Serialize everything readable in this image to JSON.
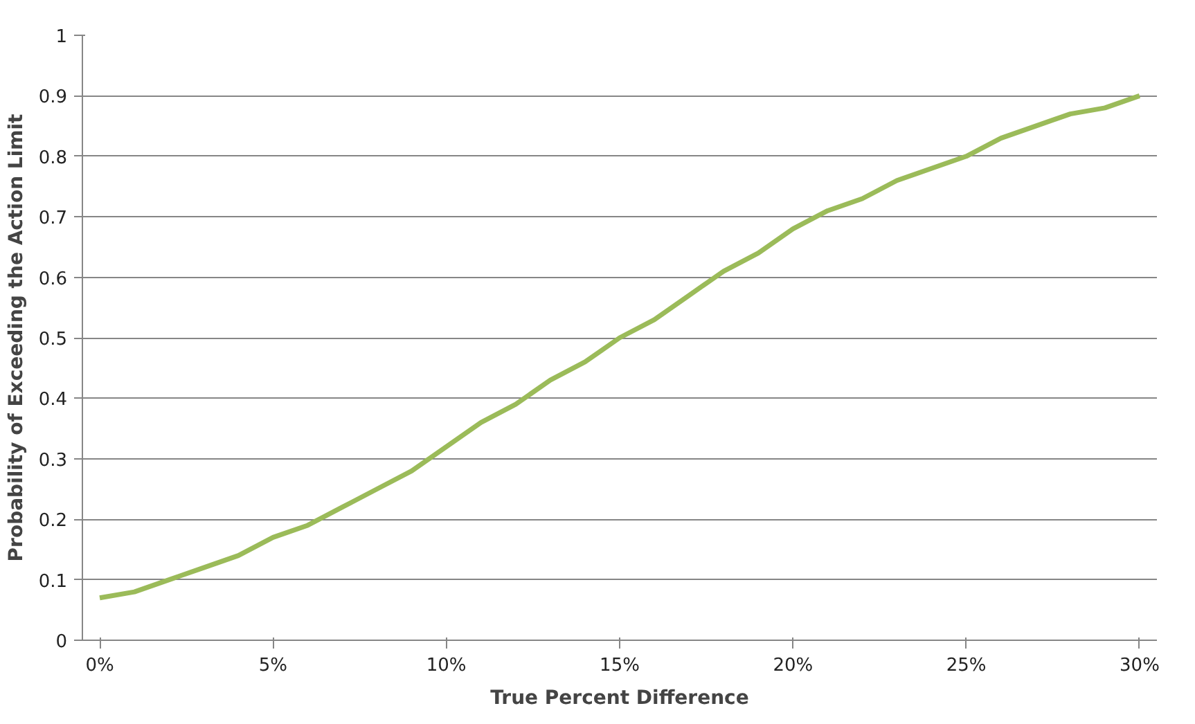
{
  "chart_data": {
    "type": "line",
    "xlabel": "True Percent Difference",
    "ylabel": "Probability of Exceeding the Action Limit",
    "x": [
      0,
      1,
      2,
      3,
      4,
      5,
      6,
      7,
      8,
      9,
      10,
      11,
      12,
      13,
      14,
      15,
      16,
      17,
      18,
      19,
      20,
      21,
      22,
      23,
      24,
      25,
      26,
      27,
      28,
      29,
      30
    ],
    "series": [
      {
        "color": "#9bbb59",
        "values": [
          0.07,
          0.08,
          0.1,
          0.12,
          0.14,
          0.17,
          0.19,
          0.22,
          0.25,
          0.28,
          0.32,
          0.36,
          0.39,
          0.43,
          0.46,
          0.5,
          0.53,
          0.57,
          0.61,
          0.64,
          0.68,
          0.71,
          0.73,
          0.76,
          0.78,
          0.8,
          0.83,
          0.85,
          0.87,
          0.88,
          0.9
        ]
      }
    ],
    "xlim": [
      -0.5,
      30.5
    ],
    "xticks": [
      {
        "value": 0,
        "label": "0%"
      },
      {
        "value": 5,
        "label": "5%"
      },
      {
        "value": 10,
        "label": "10%"
      },
      {
        "value": 15,
        "label": "15%"
      },
      {
        "value": 20,
        "label": "20%"
      },
      {
        "value": 25,
        "label": "25%"
      },
      {
        "value": 30,
        "label": "30%"
      }
    ],
    "ylim": [
      0,
      1
    ],
    "yticks": [
      0,
      {
        "value": 0.1,
        "label": "0.1"
      },
      {
        "value": 0.2,
        "label": "0.2"
      },
      {
        "value": 0.3,
        "label": "0.3"
      },
      {
        "value": 0.4,
        "label": "0.4"
      },
      {
        "value": 0.5,
        "label": "0.5"
      },
      {
        "value": 0.6,
        "label": "0.6"
      },
      {
        "value": 0.7,
        "label": "0.7"
      },
      {
        "value": 0.8,
        "label": "0.8"
      },
      {
        "value": 0.9,
        "label": "0.9"
      },
      1
    ],
    "grid": "y",
    "marker": "none",
    "line_style": "solid"
  }
}
